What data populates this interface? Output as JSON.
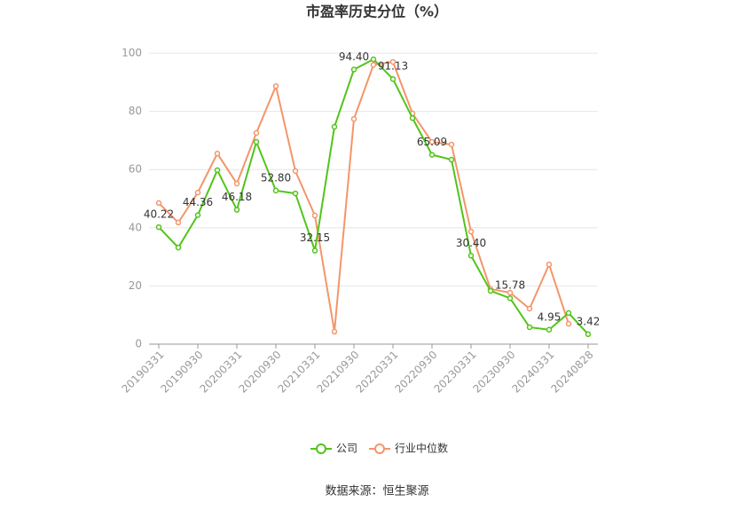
{
  "chart_data": {
    "type": "line",
    "title": "市盈率历史分位（%）",
    "categories": [
      "20190331",
      null,
      "20190930",
      null,
      "20200331",
      null,
      "20200930",
      null,
      "20210331",
      null,
      "20210930",
      null,
      "20220331",
      null,
      "20220930",
      null,
      "20230331",
      null,
      "20230930",
      null,
      "20240331",
      null,
      "20240828"
    ],
    "series": [
      {
        "name": "公司",
        "color": "#52c41a",
        "values": [
          40.22,
          33.2,
          44.36,
          59.8,
          46.18,
          69.5,
          52.8,
          51.8,
          32.15,
          74.7,
          94.4,
          97.9,
          91.13,
          77.7,
          65.09,
          63.4,
          30.4,
          18.3,
          15.78,
          5.8,
          4.95,
          10.7,
          3.42
        ],
        "value_labels": [
          "40.22",
          null,
          "44.36",
          null,
          "46.18",
          null,
          "52.80",
          null,
          "32.15",
          null,
          "94.40",
          null,
          "91.13",
          null,
          "65.09",
          null,
          "30.40",
          null,
          "15.78",
          null,
          "4.95",
          null,
          "3.42"
        ]
      },
      {
        "name": "行业中位数",
        "color": "#f4956a",
        "values": [
          48.5,
          41.8,
          52.1,
          65.5,
          55.2,
          72.6,
          88.7,
          59.5,
          44.2,
          4.3,
          77.4,
          96,
          97,
          79.3,
          69.5,
          68.6,
          38.7,
          18.9,
          17.7,
          12.2,
          27.4,
          7.0,
          null
        ]
      }
    ],
    "ylim": [
      0,
      100
    ],
    "yticks": [
      0,
      20,
      40,
      60,
      80,
      100
    ],
    "grid": true,
    "legend": "bottom",
    "source": "数据来源：恒生聚源"
  }
}
